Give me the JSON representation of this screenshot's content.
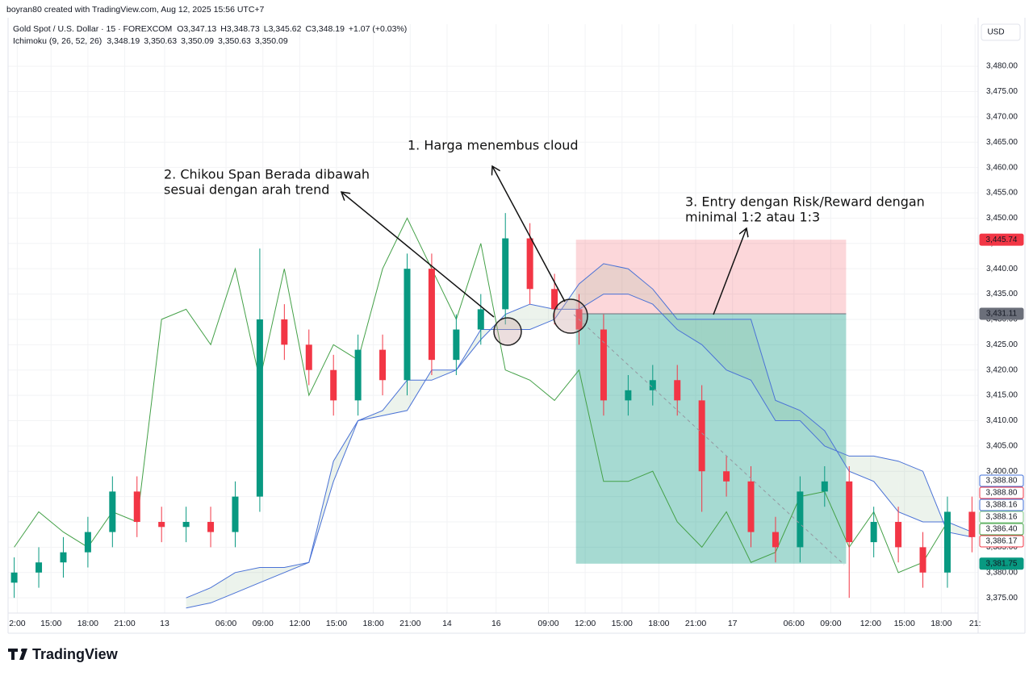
{
  "chart_data": {
    "type": "candlestick",
    "credit": "boyran80 created with TradingView.com, Aug 12, 2025 15:56 UTC+7",
    "title": "Gold Spot / U.S. Dollar · 15 · FOREXCOM",
    "ohlc_legend": [
      {
        "key": "O",
        "value": "3,347.13"
      },
      {
        "key": "H",
        "value": "3,348.73"
      },
      {
        "key": "L",
        "value": "3,345.62"
      },
      {
        "key": "C",
        "value": "3,348.19"
      }
    ],
    "change": "+1.07 (+0.03%)",
    "indicator": "Ichimoku (9, 26, 52, 26)",
    "indicator_values": [
      {
        "text": "3,348.19",
        "color": "#43a047"
      },
      {
        "text": "3,350.63",
        "color": "#81c784"
      },
      {
        "text": "3,350.09",
        "color": "#ef9a9a"
      },
      {
        "text": "3,350.63",
        "color": "#3f6fd8"
      },
      {
        "text": "3,350.09",
        "color": "#3f6fd8"
      }
    ],
    "axis_unit": "USD",
    "brand": "TradingView",
    "annotations": [
      {
        "lines": [
          "1. Harga menembus cloud"
        ]
      },
      {
        "lines": [
          "2. Chikou Span Berada dibawah",
          "sesuai dengan arah trend"
        ]
      },
      {
        "lines": [
          "3. Entry dengan Risk/Reward dengan",
          "minimal 1:2 atau 1:3"
        ]
      }
    ],
    "up_color": "#089981",
    "down_color": "#f23645",
    "grid": true,
    "xlim": [
      0,
      316
    ],
    "ylim": [
      3372,
      3488.3
    ],
    "xticks": [
      {
        "value": 3,
        "label": "2:00"
      },
      {
        "value": 14,
        "label": "15:00"
      },
      {
        "value": 26,
        "label": "18:00"
      },
      {
        "value": 38,
        "label": "21:00"
      },
      {
        "value": 51,
        "label": "13"
      },
      {
        "value": 71,
        "label": "06:00"
      },
      {
        "value": 83,
        "label": "09:00"
      },
      {
        "value": 95,
        "label": "12:00"
      },
      {
        "value": 107,
        "label": "15:00"
      },
      {
        "value": 119,
        "label": "18:00"
      },
      {
        "value": 131,
        "label": "21:00"
      },
      {
        "value": 143,
        "label": "14"
      },
      {
        "value": 159,
        "label": "16"
      },
      {
        "value": 176,
        "label": "09:00"
      },
      {
        "value": 188,
        "label": "12:00"
      },
      {
        "value": 200,
        "label": "15:00"
      },
      {
        "value": 212,
        "label": "18:00"
      },
      {
        "value": 224,
        "label": "21:00"
      },
      {
        "value": 236,
        "label": "17"
      },
      {
        "value": 256,
        "label": "06:00"
      },
      {
        "value": 268,
        "label": "09:00"
      },
      {
        "value": 281,
        "label": "12:00"
      },
      {
        "value": 292,
        "label": "15:00"
      },
      {
        "value": 304,
        "label": "18:00"
      },
      {
        "value": 315,
        "label": "21:"
      }
    ],
    "yticks": [
      {
        "value": 3375,
        "label": "3,375.00"
      },
      {
        "value": 3380,
        "label": "3,380.00"
      },
      {
        "value": 3385,
        "label": "3,385.00"
      },
      {
        "value": 3390,
        "label": "3,390.00"
      },
      {
        "value": 3395,
        "label": "3,395.00"
      },
      {
        "value": 3400,
        "label": "3,400.00"
      },
      {
        "value": 3405,
        "label": "3,405.00"
      },
      {
        "value": 3410,
        "label": "3,410.00"
      },
      {
        "value": 3415,
        "label": "3,415.00"
      },
      {
        "value": 3420,
        "label": "3,420.00"
      },
      {
        "value": 3425,
        "label": "3,425.00"
      },
      {
        "value": 3430,
        "label": "3,430.00"
      },
      {
        "value": 3435,
        "label": "3,435.00"
      },
      {
        "value": 3440,
        "label": "3,440.00"
      },
      {
        "value": 3445,
        "label": "3,445.00"
      },
      {
        "value": 3450,
        "label": "3,450.00"
      },
      {
        "value": 3455,
        "label": "3,455.00"
      },
      {
        "value": 3460,
        "label": "3,460.00"
      },
      {
        "value": 3465,
        "label": "3,465.00"
      },
      {
        "value": 3470,
        "label": "3,470.00"
      },
      {
        "value": 3475,
        "label": "3,475.00"
      },
      {
        "value": 3480,
        "label": "3,480.00"
      }
    ],
    "x": [
      2,
      10,
      18,
      26,
      34,
      42,
      50,
      58,
      66,
      74,
      82,
      90,
      98,
      106,
      114,
      122,
      130,
      138,
      146,
      154,
      162,
      170,
      178,
      186,
      194,
      202,
      210,
      218,
      226,
      234,
      242,
      250,
      258,
      266,
      274,
      282,
      290,
      298,
      306,
      314
    ],
    "open": [
      3378,
      3380,
      3382,
      3384,
      3388,
      3396,
      3390,
      3389,
      3390,
      3388,
      3395,
      3430,
      3425,
      3420,
      3414,
      3424,
      3418,
      3440,
      3422,
      3428,
      3432,
      3446,
      3436,
      3432,
      3428,
      3414,
      3416,
      3418,
      3414,
      3400,
      3398,
      3388,
      3385,
      3396,
      3398,
      3386,
      3390,
      3385,
      3380,
      3392
    ],
    "high": [
      3383,
      3385,
      3387,
      3391,
      3399,
      3399,
      3393,
      3393,
      3393,
      3398,
      3444,
      3433,
      3428,
      3423,
      3427,
      3427,
      3443,
      3443,
      3431,
      3435,
      3451,
      3449,
      3439,
      3435,
      3431,
      3419,
      3421,
      3421,
      3417,
      3403,
      3401,
      3391,
      3399,
      3401,
      3401,
      3393,
      3393,
      3388,
      3395,
      3395
    ],
    "low": [
      3375,
      3377,
      3379,
      3381,
      3385,
      3387,
      3386,
      3386,
      3385,
      3385,
      3392,
      3422,
      3417,
      3411,
      3411,
      3415,
      3415,
      3419,
      3419,
      3425,
      3429,
      3433,
      3429,
      3425,
      3411,
      3411,
      3413,
      3411,
      3392,
      3395,
      3385,
      3382,
      3382,
      3393,
      3375,
      3383,
      3382,
      3377,
      3377,
      3384
    ],
    "close": [
      3380,
      3382,
      3384,
      3388,
      3396,
      3390,
      3389,
      3390,
      3388,
      3395,
      3430,
      3425,
      3420,
      3414,
      3424,
      3418,
      3440,
      3422,
      3428,
      3432,
      3446,
      3436,
      3432,
      3428,
      3414,
      3416,
      3418,
      3414,
      3400,
      3398,
      3388,
      3385,
      3396,
      3398,
      3386,
      3390,
      3385,
      3380,
      3392,
      3387
    ],
    "cloud_color": "rgba(120,170,120,0.14)",
    "lines": [
      {
        "color": "#4a72d6",
        "values": [
          null,
          null,
          null,
          null,
          null,
          null,
          null,
          3375,
          3377,
          3380,
          3381,
          3381,
          3382,
          3402,
          3410,
          3411,
          3412,
          3420,
          3420,
          3428,
          3428,
          3428,
          3430,
          3437,
          3441,
          3440,
          3436,
          3430,
          3430,
          3430,
          3430,
          3414,
          3412,
          3408,
          3400,
          3398,
          3392,
          3390,
          3390,
          3388
        ]
      },
      {
        "color": "#4a72d6",
        "values": [
          null,
          null,
          null,
          null,
          null,
          null,
          null,
          3373,
          3374,
          3376,
          3378,
          3380,
          3382,
          3398,
          3410,
          3412,
          3418,
          3418,
          3420,
          3426,
          3431,
          3433,
          3432,
          3432,
          3435,
          3435,
          3433,
          3428,
          3425,
          3420,
          3418,
          3410,
          3410,
          3405,
          3403,
          3403,
          3402,
          3400,
          3388,
          3387
        ]
      },
      {
        "color": "#43a047",
        "values": [
          3385,
          3392,
          3388,
          3385,
          3392,
          3390,
          3430,
          3432,
          3425,
          3440,
          3418,
          3440,
          3415,
          3425,
          3422,
          3440,
          3450,
          3440,
          3430,
          3445,
          3420,
          3418,
          3414,
          3420,
          3398,
          3398,
          3400,
          3390,
          3385,
          3392,
          3382,
          3384,
          3395,
          3396,
          3385,
          3392,
          3380,
          3382,
          3390,
          null
        ]
      }
    ],
    "position": {
      "x": [
        185,
        273
      ],
      "stop": 3445.74,
      "entry": 3431.11,
      "target": 3381.75
    },
    "price_labels": [
      {
        "value": 3445.74,
        "label": "3,445.74",
        "color": "#f23645",
        "filled": true
      },
      {
        "value": 3431.11,
        "label": "3,431.11",
        "color": "#6b6f7a",
        "filled": true
      },
      {
        "value": 3388.8,
        "label": "3,388.80",
        "color": "#3f6fd8",
        "filled": false
      },
      {
        "value": 3388.8,
        "label": "3,388.80",
        "color": "#f23645",
        "filled": false
      },
      {
        "value": 3388.16,
        "label": "3,388.16",
        "color": "#3f6fd8",
        "filled": false
      },
      {
        "value": 3388.16,
        "label": "3,388.16",
        "color": "#81c784",
        "filled": false
      },
      {
        "value": 3386.4,
        "label": "3,386.40",
        "color": "#43a047",
        "filled": false
      },
      {
        "value": 3386.17,
        "label": "3,386.17",
        "color": "#f23645",
        "filled": false
      },
      {
        "value": 3381.75,
        "label": "3,381.75",
        "color": "#089981",
        "filled": true
      }
    ]
  }
}
